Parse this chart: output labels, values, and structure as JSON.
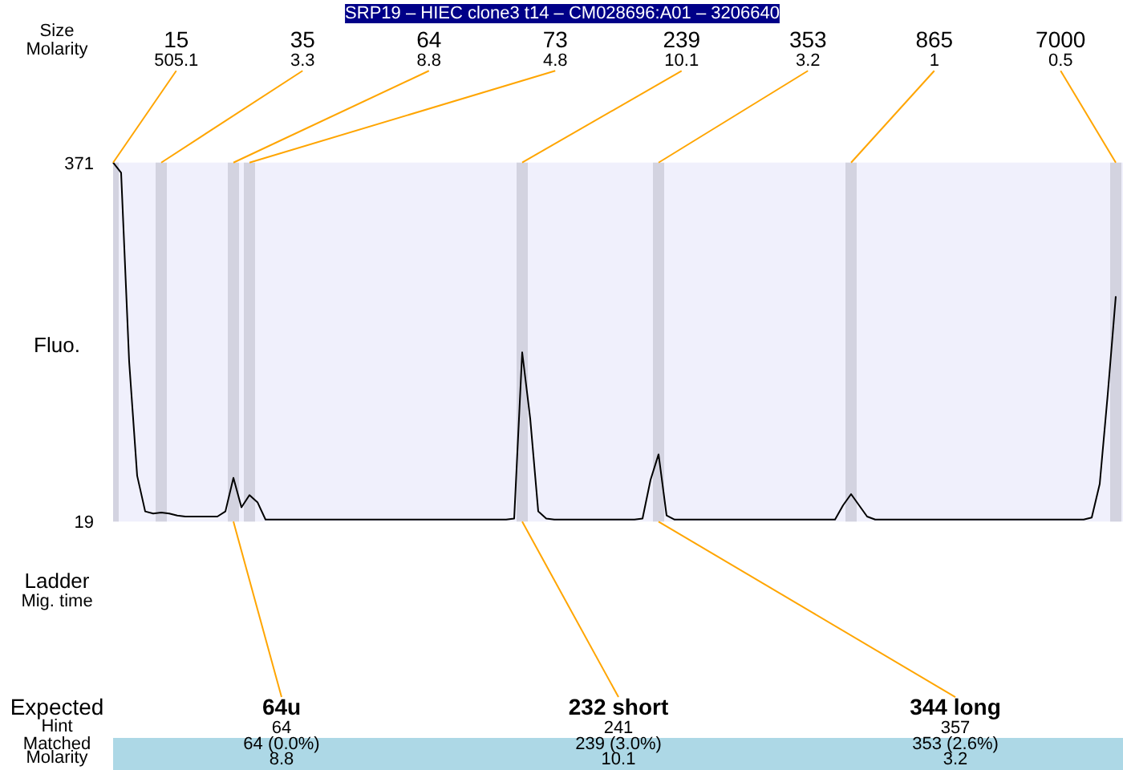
{
  "chart_data": {
    "type": "line",
    "title": "SRP19 – HIEC clone3 t14 – CM028696:A01 – 3206640",
    "ylabel": "Fluo.",
    "categories": [
      null,
      null,
      null,
      null,
      null,
      null,
      null,
      null,
      null,
      null,
      null,
      null,
      null,
      null,
      null,
      null,
      null,
      null,
      null,
      null,
      null,
      null,
      null,
      null,
      null,
      null,
      null,
      null,
      null,
      null,
      null,
      null,
      null,
      null,
      null,
      null,
      null,
      null,
      null,
      null,
      null,
      null,
      null,
      null,
      null,
      null,
      null,
      null,
      null,
      null,
      null,
      null,
      null,
      null,
      null,
      null,
      null,
      null,
      null,
      null,
      null,
      null,
      null,
      null,
      null,
      null,
      null,
      null,
      null,
      null,
      null,
      null,
      null,
      null,
      null,
      null,
      null,
      null,
      null,
      null,
      null,
      null,
      null,
      null,
      null,
      null,
      null,
      null,
      null,
      null,
      null,
      null,
      null,
      null,
      null,
      null,
      null,
      null,
      null,
      null,
      null,
      null,
      null,
      null,
      null,
      null,
      null,
      null,
      null,
      null,
      null,
      null,
      null,
      null,
      null,
      null,
      null,
      null,
      null,
      null,
      null,
      null,
      null,
      null,
      null,
      null,
      null
    ],
    "color": "#000000",
    "values": [
      371,
      361,
      176,
      64,
      29,
      27,
      28,
      27,
      25,
      24,
      24,
      24,
      24,
      24,
      29,
      62,
      33,
      45,
      38,
      21,
      21,
      21,
      21,
      21,
      21,
      21,
      21,
      21,
      21,
      21,
      21,
      21,
      21,
      21,
      21,
      21,
      21,
      21,
      21,
      21,
      21,
      21,
      21,
      21,
      21,
      21,
      21,
      21,
      21,
      21,
      22,
      185,
      120,
      29,
      22,
      21,
      21,
      21,
      21,
      21,
      21,
      21,
      21,
      21,
      21,
      21,
      22,
      60,
      85,
      25,
      21,
      21,
      21,
      21,
      21,
      21,
      21,
      21,
      21,
      21,
      21,
      21,
      21,
      21,
      21,
      21,
      21,
      21,
      21,
      21,
      21,
      35,
      46,
      35,
      24,
      21,
      21,
      21,
      21,
      21,
      21,
      21,
      21,
      21,
      21,
      21,
      21,
      21,
      21,
      21,
      21,
      21,
      21,
      21,
      21,
      21,
      21,
      21,
      21,
      21,
      21,
      21,
      23,
      56,
      144,
      240,
      null
    ],
    "ylim": [
      19,
      371
    ],
    "yticks": [
      19,
      371
    ],
    "grid": false,
    "tick_labels": "y",
    "annotations": [
      "Size",
      "Molarity",
      "Ladder",
      "Mig. time",
      "Expected",
      "Hint",
      "Matched",
      "Molarity",
      "15\n505.1",
      "35\n3.3",
      "64\n8.8",
      "73\n4.8",
      "239\n10.1",
      "353\n3.2",
      "865\n1",
      "7000\n0.5",
      "64u\n64\n64 (0.0%)\n8.8",
      "232 short\n241\n239 (3.0%)\n10.1",
      "344 long\n357\n353 (2.6%)\n3.2"
    ]
  }
}
